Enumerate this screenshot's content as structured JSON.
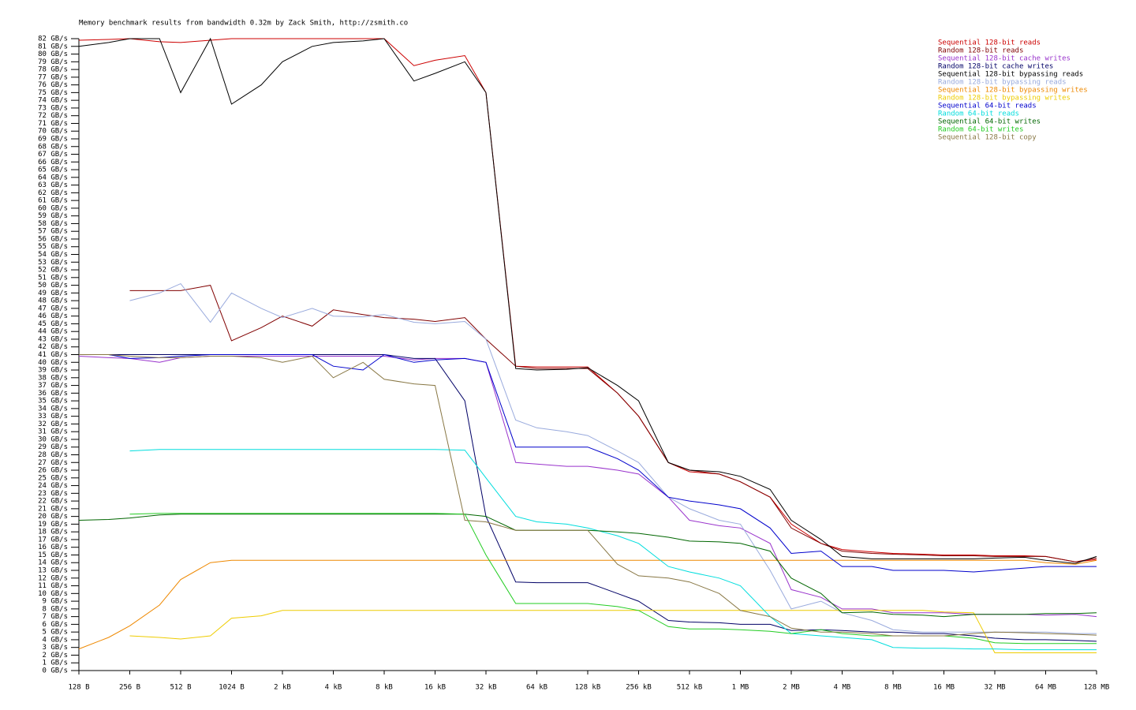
{
  "chart_data": {
    "type": "line",
    "title": "Memory benchmark results from bandwidth 0.32m by Zack Smith, http://zsmith.co",
    "x": [
      128,
      192,
      256,
      384,
      512,
      768,
      1024,
      1536,
      2048,
      3072,
      4096,
      6144,
      8192,
      12288,
      16384,
      24576,
      32768,
      49152,
      65536,
      98304,
      131072,
      196608,
      262144,
      393216,
      524288,
      786432,
      1048576,
      1572864,
      2097152,
      3145728,
      4194304,
      6291456,
      8388608,
      12582912,
      16777216,
      25165824,
      33554432,
      50331648,
      67108864,
      100663296,
      134217728
    ],
    "xscale": "log2",
    "xlim": [
      128,
      134217728
    ],
    "xticks": [
      {
        "value": 128,
        "label": "128 B"
      },
      {
        "value": 256,
        "label": "256 B"
      },
      {
        "value": 512,
        "label": "512 B"
      },
      {
        "value": 1024,
        "label": "1024 B"
      },
      {
        "value": 2048,
        "label": "2 kB"
      },
      {
        "value": 4096,
        "label": "4 kB"
      },
      {
        "value": 8192,
        "label": "8 kB"
      },
      {
        "value": 16384,
        "label": "16 kB"
      },
      {
        "value": 32768,
        "label": "32 kB"
      },
      {
        "value": 65536,
        "label": "64 kB"
      },
      {
        "value": 131072,
        "label": "128 kB"
      },
      {
        "value": 262144,
        "label": "256 kB"
      },
      {
        "value": 524288,
        "label": "512 kB"
      },
      {
        "value": 1048576,
        "label": "1 MB"
      },
      {
        "value": 2097152,
        "label": "2 MB"
      },
      {
        "value": 4194304,
        "label": "4 MB"
      },
      {
        "value": 8388608,
        "label": "8 MB"
      },
      {
        "value": 16777216,
        "label": "16 MB"
      },
      {
        "value": 33554432,
        "label": "32 MB"
      },
      {
        "value": 67108864,
        "label": "64 MB"
      },
      {
        "value": 134217728,
        "label": "128 MB"
      }
    ],
    "ylim": [
      0,
      82
    ],
    "yticks": [
      {
        "value": 0,
        "label": "0 GB/s"
      },
      {
        "value": 1,
        "label": "1 GB/s"
      },
      {
        "value": 2,
        "label": "2 GB/s"
      },
      {
        "value": 3,
        "label": "3 GB/s"
      },
      {
        "value": 4,
        "label": "4 GB/s"
      },
      {
        "value": 5,
        "label": "5 GB/s"
      },
      {
        "value": 6,
        "label": "6 GB/s"
      },
      {
        "value": 7,
        "label": "7 GB/s"
      },
      {
        "value": 8,
        "label": "8 GB/s"
      },
      {
        "value": 9,
        "label": "9 GB/s"
      },
      {
        "value": 10,
        "label": "10 GB/s"
      },
      {
        "value": 11,
        "label": "11 GB/s"
      },
      {
        "value": 12,
        "label": "12 GB/s"
      },
      {
        "value": 13,
        "label": "13 GB/s"
      },
      {
        "value": 14,
        "label": "14 GB/s"
      },
      {
        "value": 15,
        "label": "15 GB/s"
      },
      {
        "value": 16,
        "label": "16 GB/s"
      },
      {
        "value": 17,
        "label": "17 GB/s"
      },
      {
        "value": 18,
        "label": "18 GB/s"
      },
      {
        "value": 19,
        "label": "19 GB/s"
      },
      {
        "value": 20,
        "label": "20 GB/s"
      },
      {
        "value": 21,
        "label": "21 GB/s"
      },
      {
        "value": 22,
        "label": "22 GB/s"
      },
      {
        "value": 23,
        "label": "23 GB/s"
      },
      {
        "value": 24,
        "label": "24 GB/s"
      },
      {
        "value": 25,
        "label": "25 GB/s"
      },
      {
        "value": 26,
        "label": "26 GB/s"
      },
      {
        "value": 27,
        "label": "27 GB/s"
      },
      {
        "value": 28,
        "label": "28 GB/s"
      },
      {
        "value": 29,
        "label": "29 GB/s"
      },
      {
        "value": 30,
        "label": "30 GB/s"
      },
      {
        "value": 31,
        "label": "31 GB/s"
      },
      {
        "value": 32,
        "label": "32 GB/s"
      },
      {
        "value": 33,
        "label": "33 GB/s"
      },
      {
        "value": 34,
        "label": "34 GB/s"
      },
      {
        "value": 35,
        "label": "35 GB/s"
      },
      {
        "value": 36,
        "label": "36 GB/s"
      },
      {
        "value": 37,
        "label": "37 GB/s"
      },
      {
        "value": 38,
        "label": "38 GB/s"
      },
      {
        "value": 39,
        "label": "39 GB/s"
      },
      {
        "value": 40,
        "label": "40 GB/s"
      },
      {
        "value": 41,
        "label": "41 GB/s"
      },
      {
        "value": 42,
        "label": "42 GB/s"
      },
      {
        "value": 43,
        "label": "43 GB/s"
      },
      {
        "value": 44,
        "label": "44 GB/s"
      },
      {
        "value": 45,
        "label": "45 GB/s"
      },
      {
        "value": 46,
        "label": "46 GB/s"
      },
      {
        "value": 47,
        "label": "47 GB/s"
      },
      {
        "value": 48,
        "label": "48 GB/s"
      },
      {
        "value": 49,
        "label": "49 GB/s"
      },
      {
        "value": 50,
        "label": "50 GB/s"
      },
      {
        "value": 51,
        "label": "51 GB/s"
      },
      {
        "value": 52,
        "label": "52 GB/s"
      },
      {
        "value": 53,
        "label": "53 GB/s"
      },
      {
        "value": 54,
        "label": "54 GB/s"
      },
      {
        "value": 55,
        "label": "55 GB/s"
      },
      {
        "value": 56,
        "label": "56 GB/s"
      },
      {
        "value": 57,
        "label": "57 GB/s"
      },
      {
        "value": 58,
        "label": "58 GB/s"
      },
      {
        "value": 59,
        "label": "59 GB/s"
      },
      {
        "value": 60,
        "label": "60 GB/s"
      },
      {
        "value": 61,
        "label": "61 GB/s"
      },
      {
        "value": 62,
        "label": "62 GB/s"
      },
      {
        "value": 63,
        "label": "63 GB/s"
      },
      {
        "value": 64,
        "label": "64 GB/s"
      },
      {
        "value": 65,
        "label": "65 GB/s"
      },
      {
        "value": 66,
        "label": "66 GB/s"
      },
      {
        "value": 67,
        "label": "67 GB/s"
      },
      {
        "value": 68,
        "label": "68 GB/s"
      },
      {
        "value": 69,
        "label": "69 GB/s"
      },
      {
        "value": 70,
        "label": "70 GB/s"
      },
      {
        "value": 71,
        "label": "71 GB/s"
      },
      {
        "value": 72,
        "label": "72 GB/s"
      },
      {
        "value": 73,
        "label": "73 GB/s"
      },
      {
        "value": 74,
        "label": "74 GB/s"
      },
      {
        "value": 75,
        "label": "75 GB/s"
      },
      {
        "value": 76,
        "label": "76 GB/s"
      },
      {
        "value": 77,
        "label": "77 GB/s"
      },
      {
        "value": 78,
        "label": "78 GB/s"
      },
      {
        "value": 79,
        "label": "79 GB/s"
      },
      {
        "value": 80,
        "label": "80 GB/s"
      },
      {
        "value": 81,
        "label": "81 GB/s"
      },
      {
        "value": 82,
        "label": "82 GB/s"
      }
    ],
    "legend": "top-right",
    "series": [
      {
        "name": "Sequential 128-bit reads",
        "color": "#cc0000",
        "values": [
          81.8,
          81.9,
          82,
          81.6,
          81.5,
          81.8,
          82,
          82,
          82,
          82,
          82,
          82,
          82,
          78.5,
          79.2,
          79.8,
          75,
          39.5,
          39.4,
          39.4,
          39.4,
          36,
          33,
          27,
          25.8,
          25.5,
          24.5,
          22.5,
          19,
          16.5,
          15.7,
          15.4,
          15.2,
          15.1,
          15,
          15,
          14.9,
          14.9,
          14.8,
          14.1,
          14.4
        ]
      },
      {
        "name": "Random 128-bit reads",
        "color": "#800000",
        "values": [
          null,
          null,
          49.3,
          49.3,
          49.3,
          50,
          42.8,
          44.5,
          46,
          44.7,
          46.8,
          46.2,
          45.8,
          45.6,
          45.3,
          45.8,
          43,
          39.5,
          39.2,
          39.2,
          39.2,
          36,
          33,
          27,
          26,
          25.5,
          24.5,
          22.5,
          18.5,
          16.5,
          15.5,
          15.2,
          15.1,
          15,
          14.9,
          14.9,
          14.8,
          14.8,
          14.8,
          14.1,
          14.6
        ]
      },
      {
        "name": "Sequential 128-bit cache writes",
        "color": "#9933cc",
        "values": [
          40.8,
          40.6,
          40.5,
          40,
          40.6,
          40.8,
          40.8,
          40.8,
          40.8,
          40.8,
          40.8,
          40.8,
          40.8,
          40.3,
          40.5,
          40.5,
          40,
          27,
          26.8,
          26.5,
          26.5,
          26,
          25.5,
          22.5,
          19.5,
          18.8,
          18.5,
          16.5,
          10.5,
          9.5,
          8,
          8,
          7.5,
          7.5,
          7.5,
          7.3,
          7.3,
          7.3,
          7.2,
          7.3,
          7
        ]
      },
      {
        "name": "Random 128-bit cache writes",
        "color": "#000066",
        "values": [
          41,
          41,
          41,
          41,
          41,
          41,
          41,
          41,
          41,
          41,
          41,
          41,
          41,
          40.5,
          40.5,
          35,
          20,
          11.5,
          11.4,
          11.4,
          11.4,
          10,
          9,
          6.5,
          6.3,
          6.2,
          6,
          6,
          5.2,
          5.3,
          5.2,
          5,
          5,
          4.8,
          4.8,
          4.5,
          4.2,
          4,
          4,
          3.9,
          3.8
        ]
      },
      {
        "name": "Sequential 128-bit bypassing reads",
        "color": "#000000",
        "values": [
          81,
          81.5,
          82,
          82,
          75,
          82,
          73.5,
          76,
          79,
          81,
          81.5,
          81.7,
          82,
          76.5,
          77.5,
          79,
          75,
          39.2,
          39,
          39.1,
          39.3,
          37,
          35,
          27,
          26,
          25.8,
          25.2,
          23.5,
          19.5,
          17,
          14.8,
          14.5,
          14.5,
          14.5,
          14.5,
          14.5,
          14.6,
          14.7,
          14.3,
          13.9,
          14.8
        ]
      },
      {
        "name": "Random 128-bit bypassing reads",
        "color": "#99aadd",
        "values": [
          null,
          null,
          48,
          49,
          50.2,
          45.2,
          49,
          47,
          45.8,
          47,
          46,
          45.9,
          46.2,
          45.2,
          45,
          45.3,
          43,
          32.5,
          31.5,
          31,
          30.5,
          28.5,
          27,
          22.5,
          21,
          19.5,
          19,
          13,
          8,
          9,
          7.5,
          6.5,
          5.3,
          5,
          5,
          5,
          5,
          5,
          5,
          4.8,
          4.8
        ]
      },
      {
        "name": "Sequential 128-bit bypassing writes",
        "color": "#ee8800",
        "values": [
          2.8,
          4.3,
          5.8,
          8.5,
          11.8,
          14,
          14.3,
          14.3,
          14.3,
          14.3,
          14.3,
          14.3,
          14.3,
          14.3,
          14.3,
          14.3,
          14.3,
          14.3,
          14.3,
          14.3,
          14.3,
          14.3,
          14.3,
          14.3,
          14.3,
          14.3,
          14.3,
          14.3,
          14.3,
          14.3,
          14.3,
          14.3,
          14.3,
          14.3,
          14.3,
          14.3,
          14.3,
          14.3,
          14,
          13.8,
          14.3
        ]
      },
      {
        "name": "Random 128-bit bypassing writes",
        "color": "#eecc00",
        "values": [
          null,
          null,
          4.5,
          4.3,
          4.1,
          4.5,
          6.8,
          7.1,
          7.8,
          7.8,
          7.8,
          7.8,
          7.8,
          7.8,
          7.8,
          7.8,
          7.8,
          7.8,
          7.8,
          7.8,
          7.8,
          7.8,
          7.8,
          7.8,
          7.8,
          7.8,
          7.8,
          7.8,
          7.8,
          7.8,
          7.8,
          7.8,
          7.8,
          7.8,
          7.6,
          7.5,
          2.3,
          2.3,
          2.3,
          2.3,
          2.3
        ]
      },
      {
        "name": "Sequential 64-bit reads",
        "color": "#0000cc",
        "values": [
          41,
          41,
          40.5,
          40.6,
          40.8,
          41,
          41,
          41,
          41,
          41,
          39.5,
          39,
          41,
          40,
          40.3,
          40.5,
          40,
          29,
          29,
          29,
          29,
          27.5,
          26,
          22.5,
          22,
          21.5,
          21,
          18.5,
          15.2,
          15.5,
          13.5,
          13.5,
          13,
          13,
          13,
          12.8,
          13,
          13.3,
          13.5,
          13.5,
          13.5
        ]
      },
      {
        "name": "Random 64-bit reads",
        "color": "#00dddd",
        "values": [
          null,
          null,
          28.5,
          28.7,
          28.7,
          28.7,
          28.7,
          28.7,
          28.7,
          28.7,
          28.7,
          28.7,
          28.7,
          28.7,
          28.7,
          28.6,
          25,
          20,
          19.3,
          19,
          18.5,
          17.5,
          16.5,
          13.5,
          12.8,
          12,
          11,
          7,
          4.8,
          4.5,
          4.3,
          4,
          3,
          2.9,
          2.9,
          2.8,
          2.8,
          2.7,
          2.7,
          2.7,
          2.7
        ]
      },
      {
        "name": "Sequential 64-bit writes",
        "color": "#006600",
        "values": [
          19.5,
          19.6,
          19.8,
          20.2,
          20.3,
          20.3,
          20.3,
          20.3,
          20.3,
          20.3,
          20.3,
          20.3,
          20.3,
          20.3,
          20.3,
          20.3,
          20,
          18.2,
          18.2,
          18.2,
          18.2,
          18,
          17.8,
          17.3,
          16.8,
          16.7,
          16.5,
          15.5,
          12,
          10,
          7.5,
          7.6,
          7.3,
          7.2,
          7,
          7.3,
          7.3,
          7.3,
          7.4,
          7.4,
          7.5
        ]
      },
      {
        "name": "Random 64-bit writes",
        "color": "#22cc22",
        "values": [
          null,
          null,
          20.3,
          20.4,
          20.4,
          20.4,
          20.4,
          20.4,
          20.4,
          20.4,
          20.4,
          20.4,
          20.4,
          20.4,
          20.4,
          20.3,
          15,
          8.7,
          8.7,
          8.7,
          8.7,
          8.3,
          7.8,
          5.7,
          5.4,
          5.4,
          5.3,
          5.1,
          4.8,
          5.3,
          4.8,
          4.5,
          4.5,
          4.5,
          4.5,
          4.2,
          3.6,
          3.5,
          3.5,
          3.5,
          3.5
        ]
      },
      {
        "name": "Sequential 128-bit copy",
        "color": "#887744",
        "values": [
          41,
          41,
          40.8,
          40.6,
          40.6,
          40.8,
          40.8,
          40.6,
          40,
          40.8,
          38,
          40,
          37.8,
          37.2,
          37,
          19.5,
          19.3,
          18.2,
          18.2,
          18.2,
          18.2,
          13.8,
          12.3,
          12,
          11.5,
          10,
          7.8,
          7,
          5.5,
          5,
          5,
          4.8,
          4.5,
          4.5,
          4.5,
          4.8,
          5,
          4.9,
          4.8,
          4.7,
          4.6
        ]
      }
    ]
  }
}
